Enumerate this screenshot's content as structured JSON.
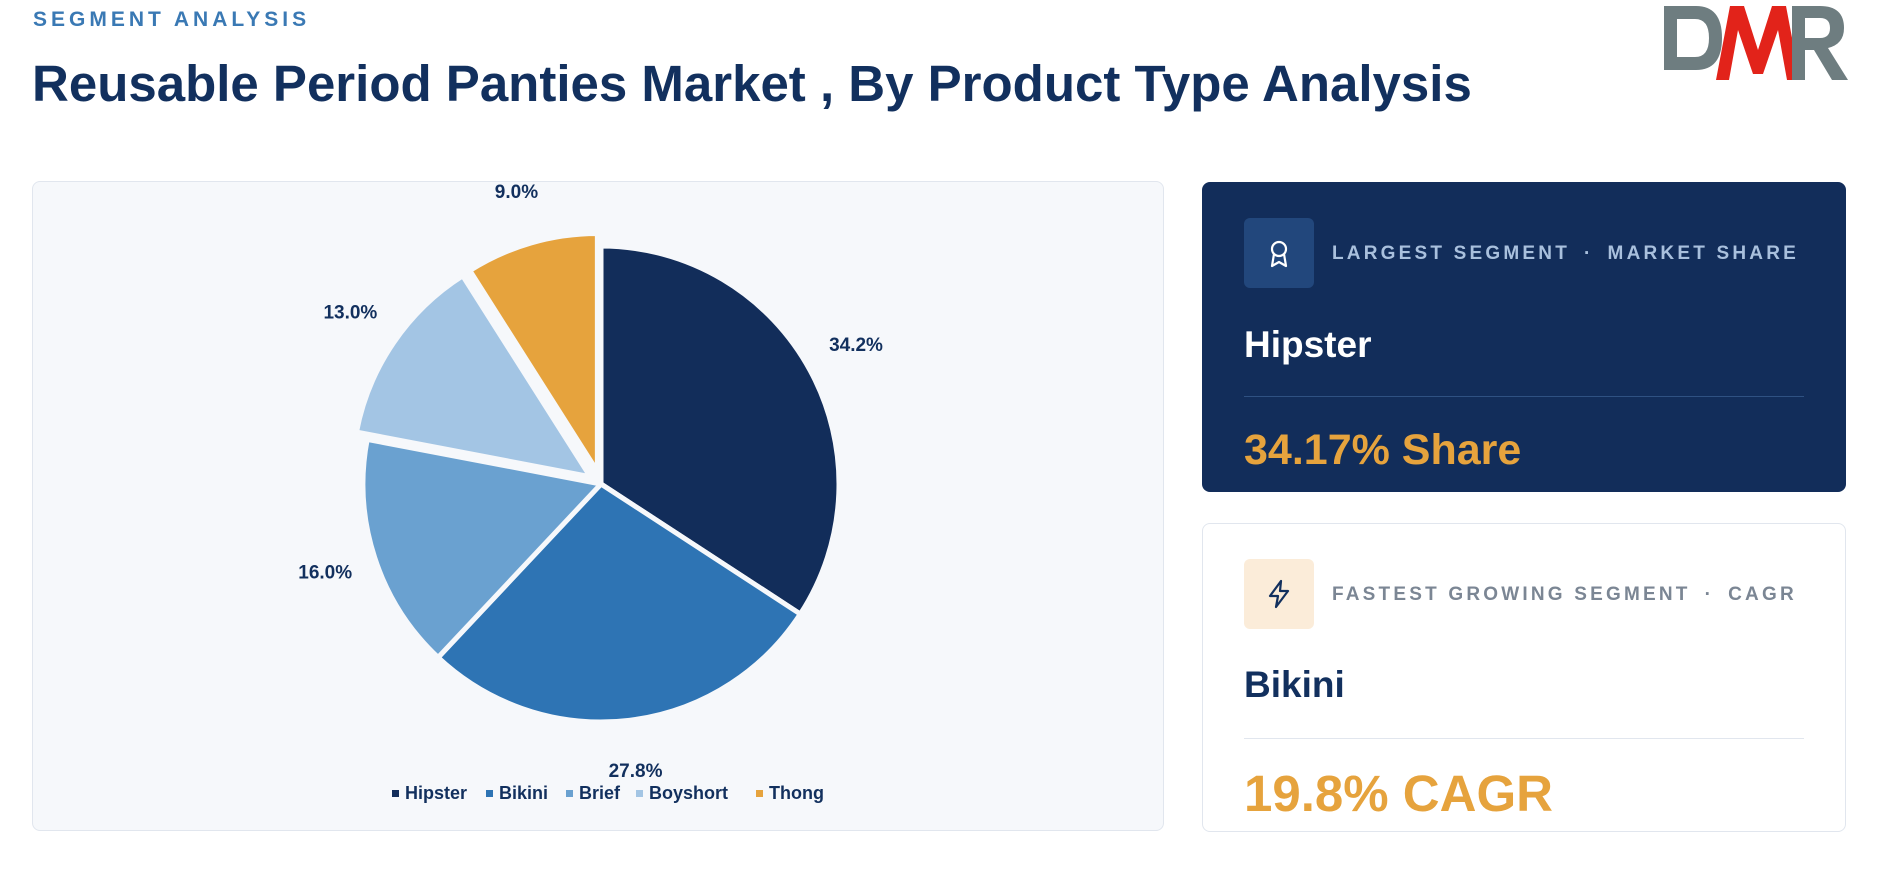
{
  "header": {
    "eyebrow": "SEGMENT ANALYSIS",
    "title": "Reusable Period Panties Market , By Product Type Analysis"
  },
  "logo": {
    "text": "DMR",
    "colors": {
      "gray": "#6e7d80",
      "red": "#e2231a"
    }
  },
  "chart_data": {
    "type": "pie",
    "categories": [
      "Hipster",
      "Bikini",
      "Brief",
      "Boyshort",
      "Thong"
    ],
    "values": [
      34.2,
      27.8,
      16.0,
      13.0,
      9.0
    ],
    "labels": [
      "34.2%",
      "27.8%",
      "16.0%",
      "13.0%",
      "9.0%"
    ],
    "colors": [
      "#122d5a",
      "#2e74b4",
      "#6aa1d0",
      "#a3c5e4",
      "#e6a33d"
    ],
    "exploded": [
      "Boyshort",
      "Thong"
    ],
    "legend_position": "bottom-center"
  },
  "cards": {
    "largest": {
      "label": "LARGEST SEGMENT",
      "label_metric": "MARKET SHARE",
      "separator": "·",
      "segment": "Hipster",
      "value": "34.17% Share",
      "icon": "award-ribbon-icon"
    },
    "fastest": {
      "label": "FASTEST GROWING SEGMENT",
      "label_metric": "CAGR",
      "separator": "·",
      "segment": "Bikini",
      "value": "19.8% CAGR",
      "icon": "lightning-bolt-icon"
    }
  }
}
